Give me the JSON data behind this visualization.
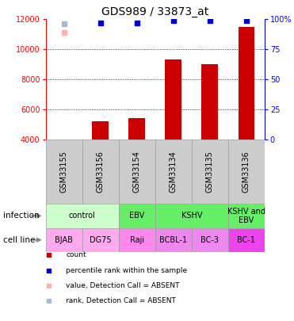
{
  "title": "GDS989 / 33873_at",
  "samples": [
    "GSM33155",
    "GSM33156",
    "GSM33154",
    "GSM33134",
    "GSM33135",
    "GSM33136"
  ],
  "x_positions": [
    0,
    1,
    2,
    3,
    4,
    5
  ],
  "bar_values": [
    null,
    5200,
    5450,
    9350,
    9000,
    11500
  ],
  "bar_base": 4000,
  "dot_values_blue_pct": [
    null,
    97,
    97,
    99,
    99,
    99
  ],
  "dot_absent_value": 11100,
  "dot_absent_pct": 96,
  "absent_sample_idx": 0,
  "ylim_left": [
    4000,
    12000
  ],
  "ylim_right": [
    0,
    100
  ],
  "yticks_left": [
    4000,
    6000,
    8000,
    10000,
    12000
  ],
  "yticks_right": [
    0,
    25,
    50,
    75,
    100
  ],
  "ytick_labels_right": [
    "0",
    "25",
    "50",
    "75",
    "100%"
  ],
  "bar_color": "#cc0000",
  "dot_color_blue": "#0000cc",
  "dot_color_absent_value": "#ffb0b0",
  "dot_color_absent_rank": "#aab8d8",
  "grid_ticks": [
    6000,
    8000,
    10000
  ],
  "infection_labels": [
    {
      "label": "control",
      "span": [
        0,
        1
      ],
      "color": "#ccffcc"
    },
    {
      "label": "EBV",
      "span": [
        2,
        2
      ],
      "color": "#66ee66"
    },
    {
      "label": "KSHV",
      "span": [
        3,
        4
      ],
      "color": "#66ee66"
    },
    {
      "label": "KSHV and\nEBV",
      "span": [
        5,
        5
      ],
      "color": "#66ee66"
    }
  ],
  "cell_line_labels": [
    {
      "label": "BJAB",
      "span": [
        0,
        0
      ],
      "color": "#ffaaee"
    },
    {
      "label": "DG75",
      "span": [
        1,
        1
      ],
      "color": "#ffaaee"
    },
    {
      "label": "Raji",
      "span": [
        2,
        2
      ],
      "color": "#ff88ee"
    },
    {
      "label": "BCBL-1",
      "span": [
        3,
        3
      ],
      "color": "#ee88ee"
    },
    {
      "label": "BC-3",
      "span": [
        4,
        4
      ],
      "color": "#ee88ee"
    },
    {
      "label": "BC-1",
      "span": [
        5,
        5
      ],
      "color": "#ee44ee"
    }
  ],
  "infection_row_label": "infection",
  "cell_line_row_label": "cell line",
  "legend_items": [
    {
      "label": "count",
      "color": "#cc0000"
    },
    {
      "label": "percentile rank within the sample",
      "color": "#0000cc"
    },
    {
      "label": "value, Detection Call = ABSENT",
      "color": "#ffb0b0"
    },
    {
      "label": "rank, Detection Call = ABSENT",
      "color": "#aab8d8"
    }
  ],
  "sample_bg_color": "#cccccc",
  "sample_border_color": "#999999",
  "axis_fontsize": 7,
  "title_fontsize": 10,
  "label_fontsize": 7,
  "legend_fontsize": 6.5
}
